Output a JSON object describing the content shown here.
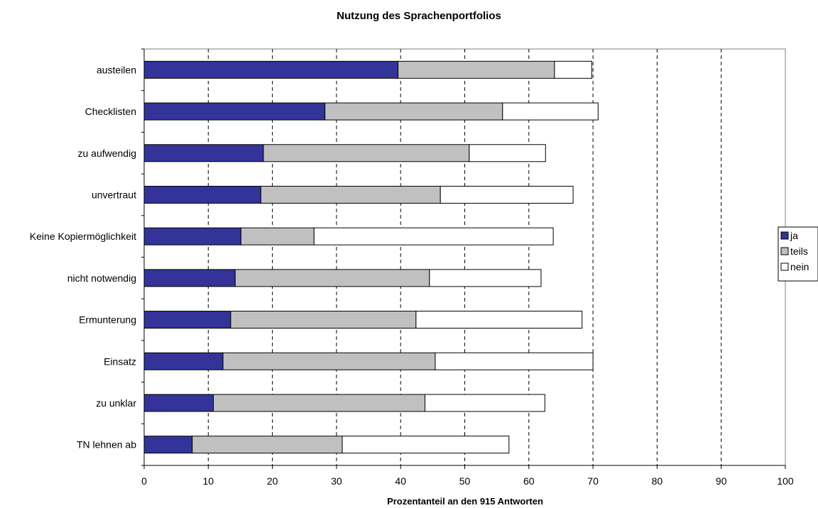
{
  "chart_data": {
    "type": "bar",
    "orientation": "horizontal",
    "stacked": true,
    "title": "Nutzung des Sprachenportfolios",
    "xlabel": "Prozentanteil an den 915 Antworten",
    "ylabel": "",
    "xlim": [
      0,
      100
    ],
    "xticks": [
      0,
      10,
      20,
      30,
      40,
      50,
      60,
      70,
      80,
      90,
      100
    ],
    "grid": "vertical dashed",
    "legend_position": "right",
    "categories": [
      "austeilen",
      "Checklisten",
      "zu aufwendig",
      "unvertraut",
      "Keine Kopiermöglichkeit",
      "nicht notwendig",
      "Ermunterung",
      "Einsatz",
      "zu unklar",
      "TN lehnen ab"
    ],
    "series": [
      {
        "name": "ja",
        "color": "#333399",
        "values": [
          39.6,
          28.2,
          18.6,
          18.2,
          15.1,
          14.2,
          13.5,
          12.3,
          10.8,
          7.5
        ]
      },
      {
        "name": "teils",
        "color": "#c0c0c0",
        "values": [
          24.4,
          27.7,
          32.1,
          28.0,
          11.4,
          30.3,
          28.9,
          33.1,
          33.0,
          23.4
        ]
      },
      {
        "name": "nein",
        "color": "#ffffff",
        "values": [
          5.8,
          14.9,
          11.9,
          20.7,
          37.3,
          17.4,
          25.9,
          24.6,
          18.7,
          26.0
        ]
      }
    ]
  }
}
